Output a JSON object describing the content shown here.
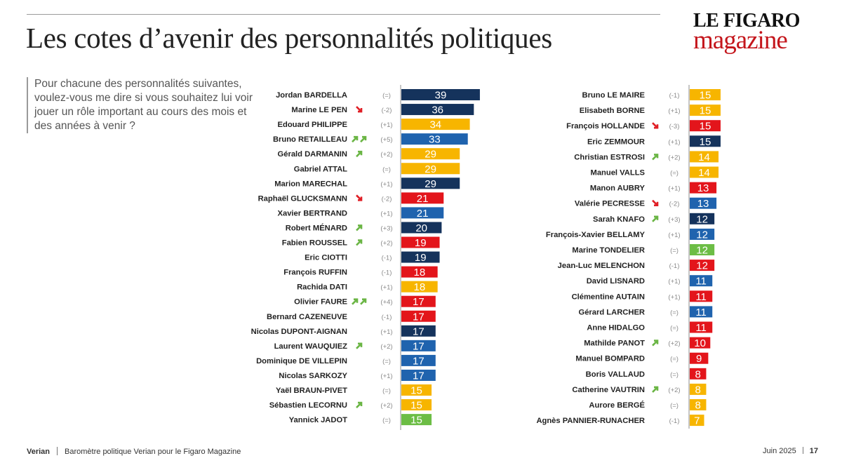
{
  "header": {
    "title": "Les cotes d’avenir des personnalités politiques",
    "logo_top": "LE FIGARO",
    "logo_bottom": "magazine"
  },
  "question": "Pour chacune des personnalités suivantes, voulez-vous me dire si vous souhaitez lui voir jouer un rôle important au cours des mois et des années à venir ?",
  "footer": {
    "brand": "Verian",
    "source": "Baromètre politique Verian pour le Figaro Magazine",
    "date": "Juin 2025",
    "page": "17"
  },
  "colors": {
    "navy": "#15335c",
    "blue": "#1f63ae",
    "yellow": "#f7b500",
    "red": "#e3151b",
    "green": "#6cbd45",
    "arrow_up": "#6ab544",
    "arrow_down": "#e01f26",
    "change_text": "#8a8a8a"
  },
  "chart_data": [
    {
      "type": "bar",
      "orientation": "horizontal",
      "title": "Les cotes d’avenir des personnalités politiques",
      "series": [
        {
          "name": "Jordan BARDELLA",
          "value": 39,
          "change": "(=)",
          "arrows": "",
          "color": "navy"
        },
        {
          "name": "Marine LE PEN",
          "value": 36,
          "change": "(-2)",
          "arrows": "down",
          "color": "navy"
        },
        {
          "name": "Edouard PHILIPPE",
          "value": 34,
          "change": "(+1)",
          "arrows": "",
          "color": "yellow"
        },
        {
          "name": "Bruno RETAILLEAU",
          "value": 33,
          "change": "(+5)",
          "arrows": "upup",
          "color": "blue"
        },
        {
          "name": "Gérald DARMANIN",
          "value": 29,
          "change": "(+2)",
          "arrows": "up",
          "color": "yellow"
        },
        {
          "name": "Gabriel ATTAL",
          "value": 29,
          "change": "(=)",
          "arrows": "",
          "color": "yellow"
        },
        {
          "name": "Marion MARECHAL",
          "value": 29,
          "change": "(+1)",
          "arrows": "",
          "color": "navy"
        },
        {
          "name": "Raphaël GLUCKSMANN",
          "value": 21,
          "change": "(-2)",
          "arrows": "down",
          "color": "red"
        },
        {
          "name": "Xavier BERTRAND",
          "value": 21,
          "change": "(+1)",
          "arrows": "",
          "color": "blue"
        },
        {
          "name": "Robert MÉNARD",
          "value": 20,
          "change": "(+3)",
          "arrows": "up",
          "color": "navy"
        },
        {
          "name": "Fabien ROUSSEL",
          "value": 19,
          "change": "(+2)",
          "arrows": "up",
          "color": "red"
        },
        {
          "name": "Eric CIOTTI",
          "value": 19,
          "change": "(-1)",
          "arrows": "",
          "color": "navy"
        },
        {
          "name": "François RUFFIN",
          "value": 18,
          "change": "(-1)",
          "arrows": "",
          "color": "red"
        },
        {
          "name": "Rachida DATI",
          "value": 18,
          "change": "(+1)",
          "arrows": "",
          "color": "yellow"
        },
        {
          "name": "Olivier FAURE",
          "value": 17,
          "change": "(+4)",
          "arrows": "upup",
          "color": "red"
        },
        {
          "name": "Bernard CAZENEUVE",
          "value": 17,
          "change": "(-1)",
          "arrows": "",
          "color": "red"
        },
        {
          "name": "Nicolas DUPONT-AIGNAN",
          "value": 17,
          "change": "(+1)",
          "arrows": "",
          "color": "navy"
        },
        {
          "name": "Laurent WAUQUIEZ",
          "value": 17,
          "change": "(+2)",
          "arrows": "up",
          "color": "blue"
        },
        {
          "name": "Dominique DE VILLEPIN",
          "value": 17,
          "change": "(=)",
          "arrows": "",
          "color": "blue"
        },
        {
          "name": "Nicolas SARKOZY",
          "value": 17,
          "change": "(+1)",
          "arrows": "",
          "color": "blue"
        },
        {
          "name": "Yaël BRAUN-PIVET",
          "value": 15,
          "change": "(=)",
          "arrows": "",
          "color": "yellow"
        },
        {
          "name": "Sébastien LECORNU",
          "value": 15,
          "change": "(+2)",
          "arrows": "up",
          "color": "yellow"
        },
        {
          "name": "Yannick JADOT",
          "value": 15,
          "change": "(=)",
          "arrows": "",
          "color": "green"
        }
      ]
    },
    {
      "type": "bar",
      "orientation": "horizontal",
      "series": [
        {
          "name": "Bruno LE MAIRE",
          "value": 15,
          "change": "(-1)",
          "arrows": "",
          "color": "yellow"
        },
        {
          "name": "Elisabeth BORNE",
          "value": 15,
          "change": "(+1)",
          "arrows": "",
          "color": "yellow"
        },
        {
          "name": "François HOLLANDE",
          "value": 15,
          "change": "(-3)",
          "arrows": "down",
          "color": "red"
        },
        {
          "name": "Eric ZEMMOUR",
          "value": 15,
          "change": "(+1)",
          "arrows": "",
          "color": "navy"
        },
        {
          "name": "Christian ESTROSI",
          "value": 14,
          "change": "(+2)",
          "arrows": "up",
          "color": "yellow"
        },
        {
          "name": "Manuel VALLS",
          "value": 14,
          "change": "(=)",
          "arrows": "",
          "color": "yellow"
        },
        {
          "name": "Manon AUBRY",
          "value": 13,
          "change": "(+1)",
          "arrows": "",
          "color": "red"
        },
        {
          "name": "Valérie PECRESSE",
          "value": 13,
          "change": "(-2)",
          "arrows": "down",
          "color": "blue"
        },
        {
          "name": "Sarah KNAFO",
          "value": 12,
          "change": "(+3)",
          "arrows": "up",
          "color": "navy"
        },
        {
          "name": "François-Xavier BELLAMY",
          "value": 12,
          "change": "(+1)",
          "arrows": "",
          "color": "blue"
        },
        {
          "name": "Marine TONDELIER",
          "value": 12,
          "change": "(=)",
          "arrows": "",
          "color": "green"
        },
        {
          "name": "Jean-Luc MELENCHON",
          "value": 12,
          "change": "(-1)",
          "arrows": "",
          "color": "red"
        },
        {
          "name": "David LISNARD",
          "value": 11,
          "change": "(+1)",
          "arrows": "",
          "color": "blue"
        },
        {
          "name": "Clémentine AUTAIN",
          "value": 11,
          "change": "(+1)",
          "arrows": "",
          "color": "red"
        },
        {
          "name": "Gérard LARCHER",
          "value": 11,
          "change": "(=)",
          "arrows": "",
          "color": "blue"
        },
        {
          "name": "Anne HIDALGO",
          "value": 11,
          "change": "(=)",
          "arrows": "",
          "color": "red"
        },
        {
          "name": "Mathilde PANOT",
          "value": 10,
          "change": "(+2)",
          "arrows": "up",
          "color": "red"
        },
        {
          "name": "Manuel BOMPARD",
          "value": 9,
          "change": "(=)",
          "arrows": "",
          "color": "red"
        },
        {
          "name": "Boris VALLAUD",
          "value": 8,
          "change": "(=)",
          "arrows": "",
          "color": "red"
        },
        {
          "name": "Catherine VAUTRIN",
          "value": 8,
          "change": "(+2)",
          "arrows": "up",
          "color": "yellow"
        },
        {
          "name": "Aurore BERGÉ",
          "value": 8,
          "change": "(=)",
          "arrows": "",
          "color": "yellow"
        },
        {
          "name": "Agnès PANNIER-RUNACHER",
          "value": 7,
          "change": "(-1)",
          "arrows": "",
          "color": "yellow"
        }
      ]
    }
  ]
}
